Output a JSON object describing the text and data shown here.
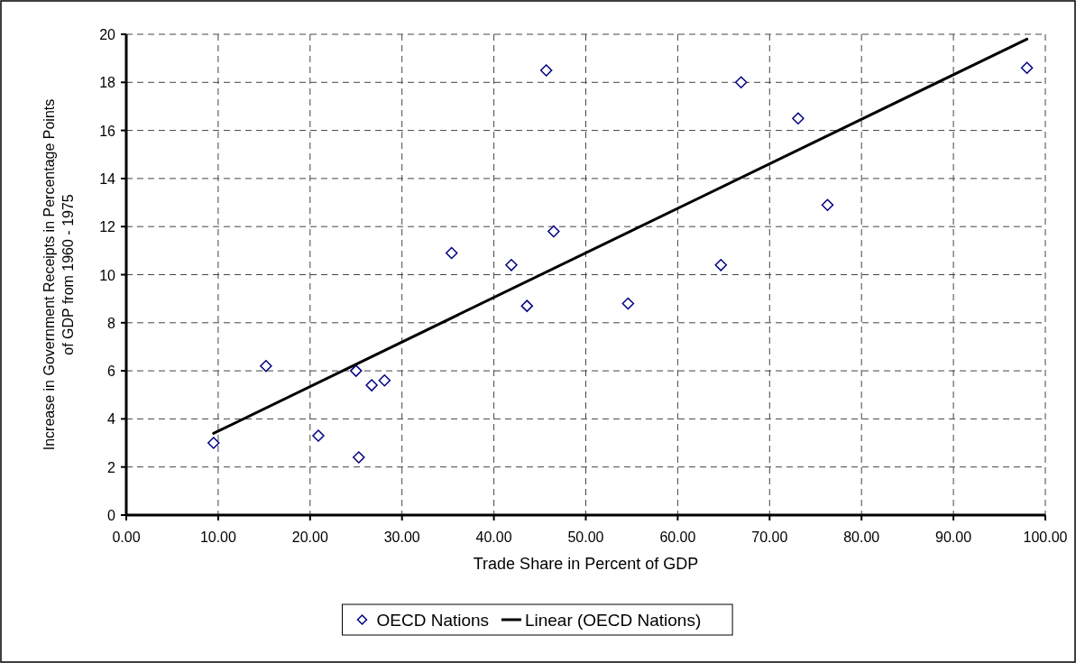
{
  "chart_data": {
    "type": "scatter",
    "xlabel": "Trade Share in Percent of GDP",
    "ylabel": "Increase in Government Receipts in Percentage Points\nof GDP from 1960 - 1975",
    "xlim": [
      0,
      100
    ],
    "ylim": [
      0,
      20
    ],
    "xticks": [
      {
        "value": 0,
        "label": "0.00"
      },
      {
        "value": 10,
        "label": "10.00"
      },
      {
        "value": 20,
        "label": "20.00"
      },
      {
        "value": 30,
        "label": "30.00"
      },
      {
        "value": 40,
        "label": "40.00"
      },
      {
        "value": 50,
        "label": "50.00"
      },
      {
        "value": 60,
        "label": "60.00"
      },
      {
        "value": 70,
        "label": "70.00"
      },
      {
        "value": 80,
        "label": "80.00"
      },
      {
        "value": 90,
        "label": "90.00"
      },
      {
        "value": 100,
        "label": "100.00"
      }
    ],
    "yticks": [
      0,
      2,
      4,
      6,
      8,
      10,
      12,
      14,
      16,
      18,
      20
    ],
    "grid": true,
    "legend": "bottom",
    "marker": "diamond",
    "series": [
      {
        "name": "OECD Nations",
        "color": "#000080",
        "x": [
          9.5,
          15.2,
          20.9,
          25.0,
          25.3,
          26.7,
          28.1,
          35.4,
          41.9,
          43.6,
          45.7,
          46.5,
          54.6,
          64.7,
          66.9,
          73.1,
          76.3,
          98.0
        ],
        "values": [
          3.0,
          6.2,
          3.3,
          6.0,
          2.4,
          5.4,
          5.6,
          10.9,
          10.4,
          8.7,
          18.5,
          11.8,
          8.8,
          10.4,
          18.0,
          16.5,
          12.9,
          18.6
        ]
      },
      {
        "name": "Linear (OECD Nations)",
        "type": "line",
        "color": "#000000",
        "marker": "none",
        "line_style": "solid",
        "x": [
          9.5,
          98.0
        ],
        "values": [
          3.4,
          19.8
        ]
      }
    ]
  }
}
